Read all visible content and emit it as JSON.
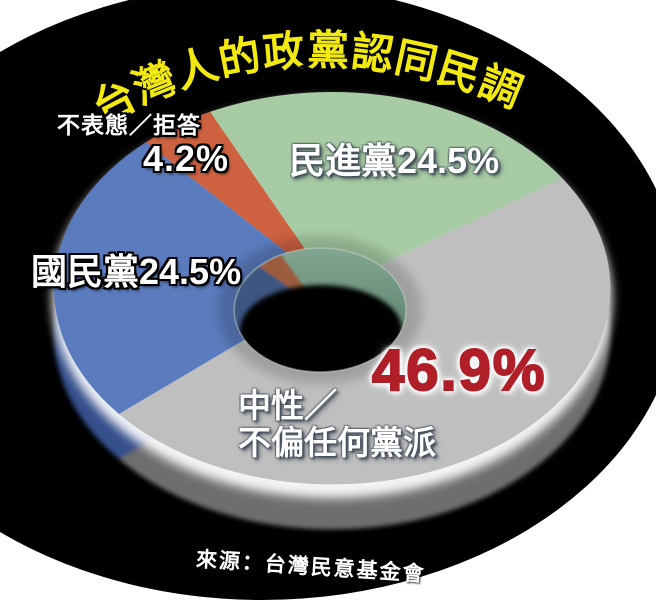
{
  "title": "台灣人的政黨認同民調",
  "source": "來源：台灣民意基金會",
  "colors": {
    "canvas": "#ffffff",
    "backdrop": "#000000",
    "title_fill": "#f2e910",
    "title_stroke": "#000000",
    "label_text": "#ffffff",
    "neutral_value_red": "#b01e28",
    "rim_highlight": "#ffffff",
    "hole_bottom": "#000000"
  },
  "chart_data": {
    "type": "pie",
    "style": "3d-donut",
    "title": "台灣人的政黨認同民調",
    "source": "來源：台灣民意基金會",
    "legend_position": "labels-on-slices",
    "slices": [
      {
        "id": "undecided",
        "name": "不表態／拒答",
        "value": 4.2,
        "label_name": "不表態／拒答",
        "label_value": "4.2%",
        "color": "#ce6140",
        "side_color": "#8f4a2b",
        "wall_color": "#9a5b3e",
        "angles": [
          -42,
          -26
        ]
      },
      {
        "id": "dpp",
        "name": "民進黨",
        "value": 24.5,
        "label": "民進黨24.5%",
        "color": "#a7cba4",
        "side_color": "#7b9c82",
        "wall_color": "#5d8873",
        "angles": [
          -26,
          56
        ]
      },
      {
        "id": "neutral",
        "name": "中性／不偏任何黨派",
        "value": 46.9,
        "label_line1": "中性／",
        "label_line2": "不偏任何黨派",
        "label_value": "46.9%",
        "color": "#bfbfbf",
        "side_color": "#6e6e6e",
        "wall_color": "#8a8a8a",
        "angles": [
          56,
          230
        ]
      },
      {
        "id": "kmt",
        "name": "國民黨",
        "value": 24.5,
        "label": "國民黨24.5%",
        "color": "#5a7bbd",
        "side_color": "#35508c",
        "wall_color": "#3d5682",
        "angles": [
          230,
          318
        ]
      }
    ]
  }
}
